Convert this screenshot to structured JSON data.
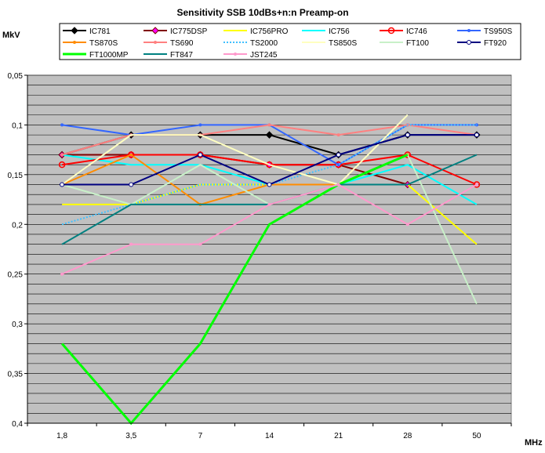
{
  "chart_data": {
    "type": "line",
    "title": "Sensitivity SSB 10dBs+n:n  Preamp-on",
    "ylabel": "MkV",
    "xlabel": "MHz",
    "categories": [
      "1,8",
      "3,5",
      "7",
      "14",
      "21",
      "28",
      "50"
    ],
    "ylim": [
      0.05,
      0.4
    ],
    "y_reversed": true,
    "y_ticks": [
      0.05,
      0.1,
      0.15,
      0.2,
      0.25,
      0.3,
      0.35,
      0.4
    ],
    "y_tick_labels": [
      "0,05",
      "0,1",
      "0,15",
      "0,2",
      "0,25",
      "0,3",
      "0,35",
      "0,4"
    ],
    "grid": true,
    "legend_position": "top",
    "plot_background": "#c0c0c0",
    "series": [
      {
        "name": "IC781",
        "color": "#000000",
        "marker": "diamond",
        "values": [
          0.13,
          0.11,
          0.11,
          0.11,
          0.13,
          0.11,
          0.11
        ]
      },
      {
        "name": "IC775DSP",
        "color": "#800000",
        "marker": "diamond-magenta",
        "values": [
          0.13,
          0.13,
          0.13,
          0.14,
          0.14,
          0.16,
          null
        ]
      },
      {
        "name": "IC756PRO",
        "color": "#ffff00",
        "marker": "none",
        "values": [
          0.18,
          0.18,
          0.16,
          0.16,
          0.16,
          0.16,
          0.22
        ]
      },
      {
        "name": "IC756",
        "color": "#00ffff",
        "marker": "none",
        "values": [
          0.13,
          0.14,
          0.14,
          0.16,
          0.16,
          0.14,
          0.18
        ]
      },
      {
        "name": "IC746",
        "color": "#ff0000",
        "marker": "circle",
        "values": [
          0.14,
          0.13,
          0.13,
          0.14,
          0.14,
          0.13,
          0.16
        ]
      },
      {
        "name": "TS950S",
        "color": "#3366ff",
        "marker": "dot",
        "values": [
          0.1,
          0.11,
          0.1,
          0.1,
          0.14,
          0.1,
          0.1
        ]
      },
      {
        "name": "TS870S",
        "color": "#ff8c00",
        "marker": "dot",
        "values": [
          0.16,
          0.13,
          0.18,
          0.16,
          0.16,
          0.13,
          null
        ]
      },
      {
        "name": "TS690",
        "color": "#ff8080",
        "marker": "dot",
        "values": [
          0.13,
          0.11,
          0.11,
          0.1,
          0.11,
          0.1,
          0.11
        ]
      },
      {
        "name": "TS2000",
        "color": "#40c0ff",
        "marker": "none",
        "dotted": true,
        "values": [
          0.2,
          0.18,
          0.16,
          0.16,
          0.14,
          0.1,
          0.1
        ]
      },
      {
        "name": "TS850S",
        "color": "#ffffc0",
        "marker": "none",
        "values": [
          0.16,
          0.11,
          0.11,
          0.14,
          0.16,
          0.09,
          null
        ]
      },
      {
        "name": "FT100",
        "color": "#c8f0c8",
        "marker": "none",
        "values": [
          0.16,
          0.18,
          0.14,
          0.18,
          0.16,
          0.13,
          0.28
        ]
      },
      {
        "name": "FT920",
        "color": "#000080",
        "marker": "circle-small",
        "values": [
          0.16,
          0.16,
          0.13,
          0.16,
          0.13,
          0.11,
          0.11
        ]
      },
      {
        "name": "FT1000MP",
        "color": "#00ff00",
        "marker": "none",
        "values": [
          0.32,
          0.4,
          0.32,
          0.2,
          0.16,
          0.13,
          null
        ]
      },
      {
        "name": "FT847",
        "color": "#008080",
        "marker": "none",
        "values": [
          0.22,
          0.18,
          0.18,
          0.18,
          0.16,
          0.16,
          0.13
        ]
      },
      {
        "name": "JST245",
        "color": "#ff99cc",
        "marker": "dot",
        "values": [
          0.25,
          0.22,
          0.22,
          0.18,
          0.16,
          0.2,
          0.16
        ]
      }
    ]
  }
}
